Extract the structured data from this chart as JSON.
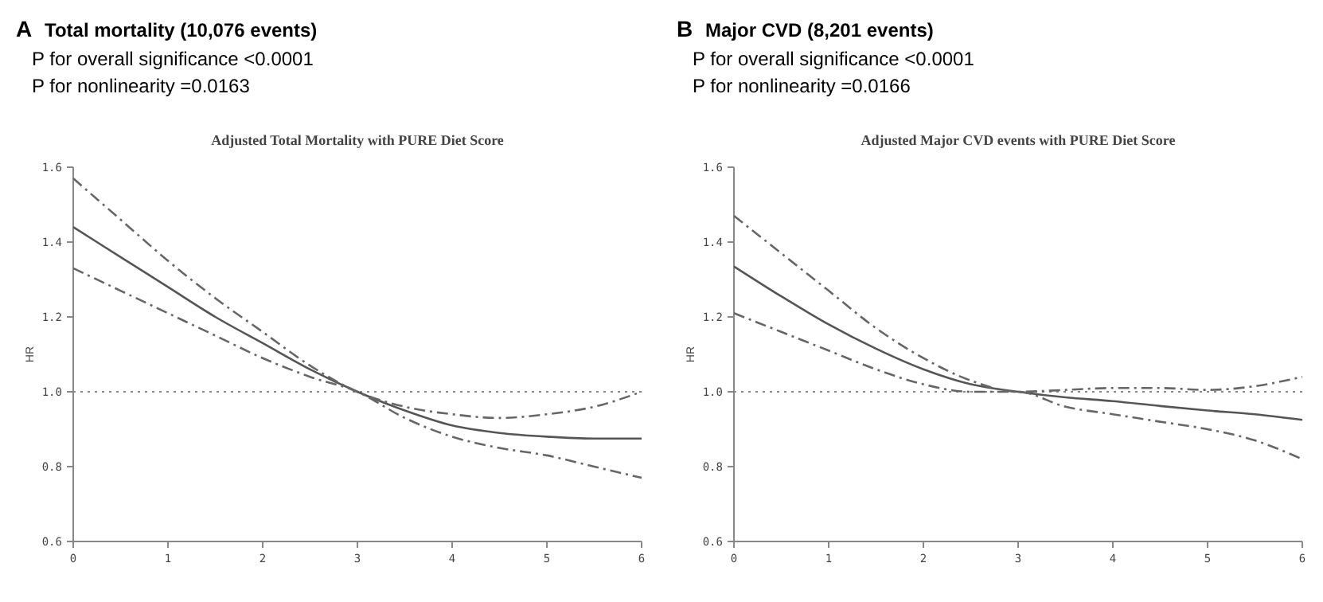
{
  "chart_data": [
    {
      "type": "line",
      "title": "Adjusted Total Mortality with PURE Diet Score",
      "ylabel": "HR",
      "annotations": [
        "A",
        "Total mortality (10,076 events)",
        "P for overall significance <0.0001",
        "P for nonlinearity =0.0163"
      ],
      "x": [
        0,
        0.5,
        1,
        1.5,
        2,
        2.5,
        3,
        3.5,
        4,
        4.5,
        5,
        5.5,
        6
      ],
      "xlim": [
        0,
        6
      ],
      "xticks": [
        0,
        1,
        2,
        3,
        4,
        5,
        6
      ],
      "ylim": [
        0.6,
        1.6
      ],
      "yticks": [
        {
          "value": 0.6,
          "label": "0.6"
        },
        {
          "value": 0.8,
          "label": "0.8"
        },
        {
          "value": 1,
          "label": "1.0"
        },
        {
          "value": 1.2,
          "label": "1.2"
        },
        {
          "value": 1.4,
          "label": "1.4"
        },
        {
          "value": 1.6,
          "label": "1.6"
        }
      ],
      "ref_lines": [
        {
          "axis": "y",
          "value": 1,
          "line_style": "dotted",
          "color": "#888888"
        }
      ],
      "series": [
        {
          "color": "#555555",
          "line_style": "solid",
          "values": [
            1.44,
            1.36,
            1.28,
            1.2,
            1.13,
            1.06,
            1.0,
            0.95,
            0.91,
            0.89,
            0.88,
            0.875,
            0.875
          ]
        },
        {
          "color": "#666666",
          "line_style": "dashed",
          "values": [
            1.57,
            1.46,
            1.35,
            1.25,
            1.16,
            1.07,
            1.0,
            0.96,
            0.94,
            0.93,
            0.94,
            0.96,
            1.0
          ]
        },
        {
          "color": "#666666",
          "line_style": "dashed",
          "values": [
            1.33,
            1.27,
            1.21,
            1.15,
            1.09,
            1.04,
            1.0,
            0.93,
            0.88,
            0.85,
            0.83,
            0.8,
            0.77
          ]
        }
      ]
    },
    {
      "type": "line",
      "title": "Adjusted Major CVD events with PURE Diet Score",
      "ylabel": "HR",
      "annotations": [
        "B",
        "Major CVD (8,201 events)",
        "P for overall significance <0.0001",
        "P for nonlinearity =0.0166"
      ],
      "x": [
        0,
        0.5,
        1,
        1.5,
        2,
        2.5,
        3,
        3.5,
        4,
        4.5,
        5,
        5.5,
        6
      ],
      "xlim": [
        0,
        6
      ],
      "xticks": [
        0,
        1,
        2,
        3,
        4,
        5,
        6
      ],
      "ylim": [
        0.6,
        1.6
      ],
      "yticks": [
        {
          "value": 0.6,
          "label": "0.6"
        },
        {
          "value": 0.8,
          "label": "0.8"
        },
        {
          "value": 1,
          "label": "1.0"
        },
        {
          "value": 1.2,
          "label": "1.2"
        },
        {
          "value": 1.4,
          "label": "1.4"
        },
        {
          "value": 1.6,
          "label": "1.6"
        }
      ],
      "ref_lines": [
        {
          "axis": "y",
          "value": 1,
          "line_style": "dotted",
          "color": "#888888"
        }
      ],
      "series": [
        {
          "color": "#555555",
          "line_style": "solid",
          "values": [
            1.335,
            1.255,
            1.18,
            1.115,
            1.06,
            1.02,
            1.0,
            0.985,
            0.975,
            0.962,
            0.95,
            0.94,
            0.925
          ]
        },
        {
          "color": "#666666",
          "line_style": "dashed",
          "values": [
            1.47,
            1.37,
            1.27,
            1.17,
            1.09,
            1.03,
            1.0,
            1.005,
            1.01,
            1.01,
            1.005,
            1.015,
            1.04
          ]
        },
        {
          "color": "#666666",
          "line_style": "dashed",
          "values": [
            1.21,
            1.16,
            1.11,
            1.06,
            1.02,
            1.0,
            1.0,
            0.96,
            0.94,
            0.92,
            0.9,
            0.87,
            0.82
          ]
        }
      ]
    }
  ]
}
